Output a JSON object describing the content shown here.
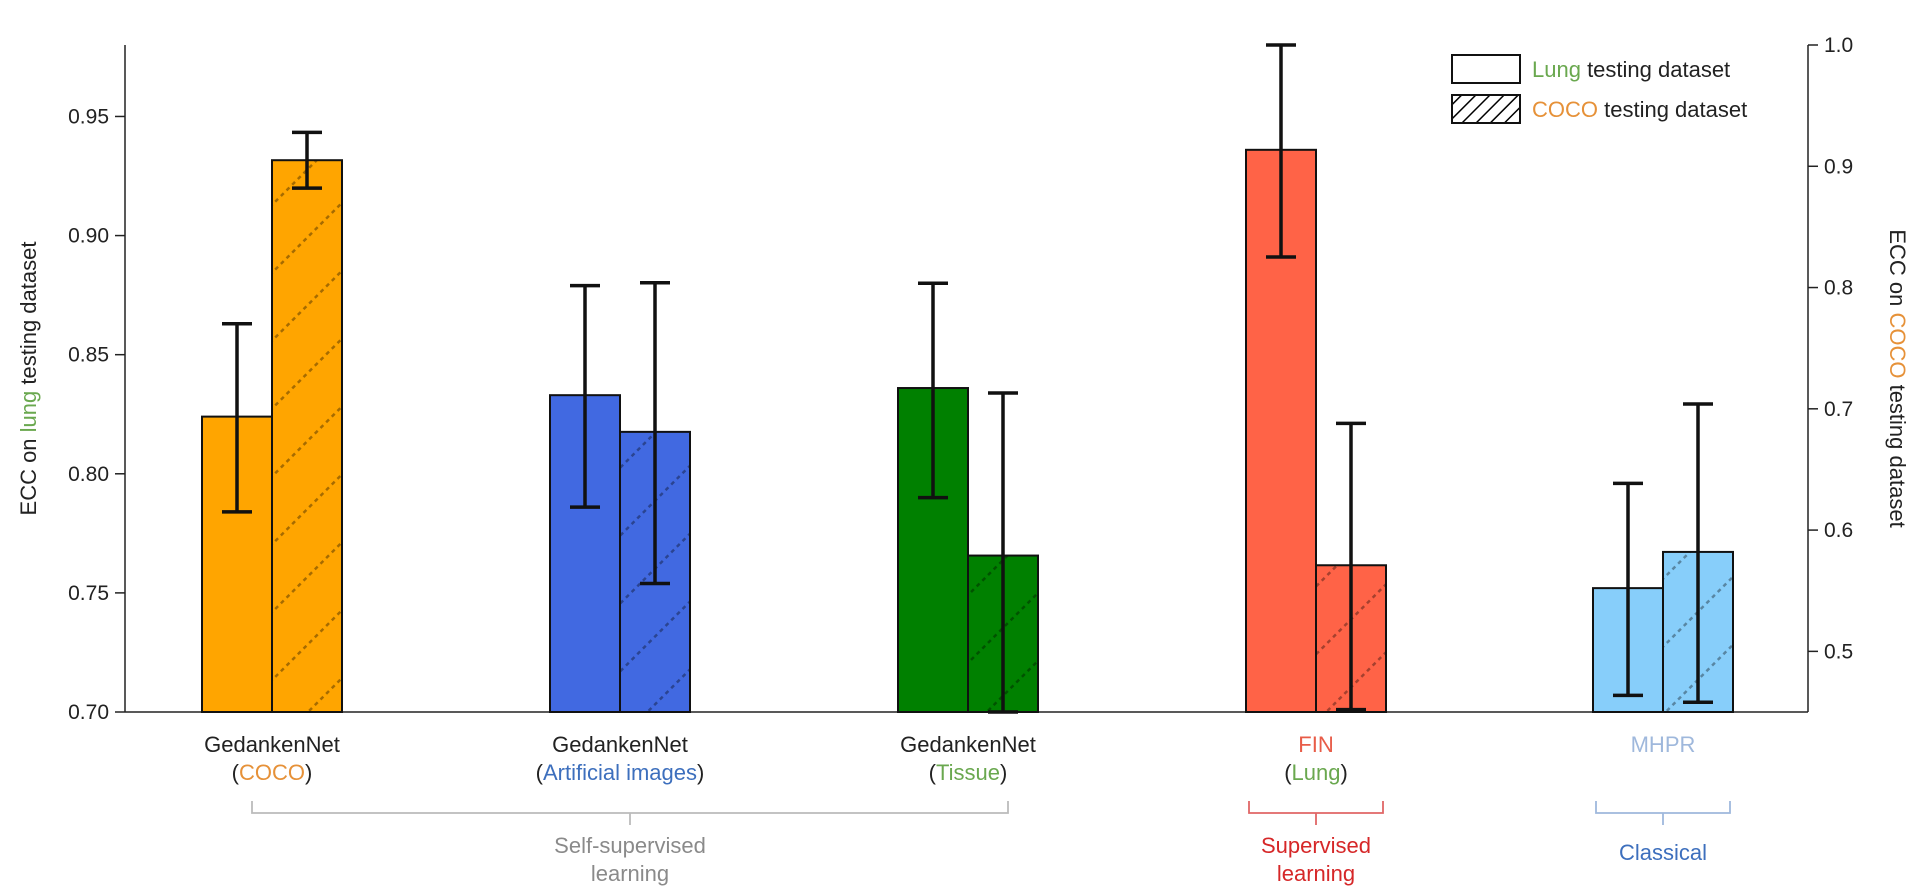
{
  "chart_data": {
    "type": "bar",
    "left_axis": {
      "title_parts": [
        "ECC on ",
        "lung",
        " testing dataset"
      ],
      "title_colors": [
        "#222222",
        "#6aa84f",
        "#222222"
      ],
      "ylim": [
        0.7,
        0.98
      ],
      "ticks": [
        "0.70",
        "0.75",
        "0.80",
        "0.85",
        "0.90",
        "0.95"
      ],
      "tick_values": [
        0.7,
        0.75,
        0.8,
        0.85,
        0.9,
        0.95
      ]
    },
    "right_axis": {
      "title_parts": [
        "ECC on ",
        "COCO",
        " testing dataset"
      ],
      "title_colors": [
        "#222222",
        "#e69138",
        "#222222"
      ],
      "ylim": [
        0.45,
        1.0
      ],
      "ticks": [
        "0.5",
        "0.6",
        "0.7",
        "0.8",
        "0.9",
        "1.0"
      ],
      "tick_values": [
        0.5,
        0.6,
        0.7,
        0.8,
        0.9,
        1.0
      ]
    },
    "legend": {
      "position": "top-right",
      "items": [
        {
          "parts": [
            "Lung",
            " testing dataset"
          ],
          "colors": [
            "#6aa84f",
            "#222222"
          ],
          "hatched": false
        },
        {
          "parts": [
            "COCO",
            " testing dataset"
          ],
          "colors": [
            "#e69138",
            "#222222"
          ],
          "hatched": true
        }
      ]
    },
    "categories": [
      {
        "name_line1_parts": [
          "GedankenNet"
        ],
        "name_line1_colors": [
          "#222222"
        ],
        "name_line2_parts": [
          "(",
          "COCO",
          ")"
        ],
        "name_line2_colors": [
          "#222222",
          "#e69138",
          "#222222"
        ],
        "color": "#ffa500",
        "lung": {
          "value": 0.824,
          "err_low": 0.784,
          "err_high": 0.863
        },
        "coco": {
          "value": 0.905,
          "err_low": 0.882,
          "err_high": 0.928
        }
      },
      {
        "name_line1_parts": [
          "GedankenNet"
        ],
        "name_line1_colors": [
          "#222222"
        ],
        "name_line2_parts": [
          "(",
          "Artificial images",
          ")"
        ],
        "name_line2_colors": [
          "#222222",
          "#3d6fbd",
          "#222222"
        ],
        "color": "#4169e1",
        "lung": {
          "value": 0.833,
          "err_low": 0.786,
          "err_high": 0.879
        },
        "coco": {
          "value": 0.681,
          "err_low": 0.556,
          "err_high": 0.804
        }
      },
      {
        "name_line1_parts": [
          "GedankenNet"
        ],
        "name_line1_colors": [
          "#222222"
        ],
        "name_line2_parts": [
          "(",
          "Tissue",
          ")"
        ],
        "name_line2_colors": [
          "#222222",
          "#6aa84f",
          "#222222"
        ],
        "color": "#008000",
        "lung": {
          "value": 0.836,
          "err_low": 0.79,
          "err_high": 0.88
        },
        "coco": {
          "value": 0.579,
          "err_low": 0.45,
          "err_high": 0.713
        }
      },
      {
        "name_line1_parts": [
          "FIN"
        ],
        "name_line1_colors": [
          "#e85c48"
        ],
        "name_line2_parts": [
          "(",
          "Lung",
          ")"
        ],
        "name_line2_colors": [
          "#222222",
          "#6aa84f",
          "#222222"
        ],
        "color": "#ff6347",
        "lung": {
          "value": 0.936,
          "err_low": 0.891,
          "err_high": 0.98
        },
        "coco": {
          "value": 0.571,
          "err_low": 0.452,
          "err_high": 0.688
        }
      },
      {
        "name_line1_parts": [
          "MHPR"
        ],
        "name_line1_colors": [
          "#9fb8dc"
        ],
        "name_line2_parts": [],
        "name_line2_colors": [],
        "color": "#87cefa",
        "lung": {
          "value": 0.752,
          "err_low": 0.707,
          "err_high": 0.796
        },
        "coco": {
          "value": 0.582,
          "err_low": 0.458,
          "err_high": 0.704
        }
      }
    ],
    "groups": [
      {
        "lines": [
          "Self-supervised",
          "learning"
        ],
        "color": "#8a8a8a",
        "from": 0,
        "to": 2
      },
      {
        "lines": [
          "Supervised",
          "learning"
        ],
        "color": "#d62728",
        "from": 3,
        "to": 3
      },
      {
        "lines": [
          "Classical"
        ],
        "color": "#3d6fbd",
        "from": 4,
        "to": 4
      }
    ]
  }
}
